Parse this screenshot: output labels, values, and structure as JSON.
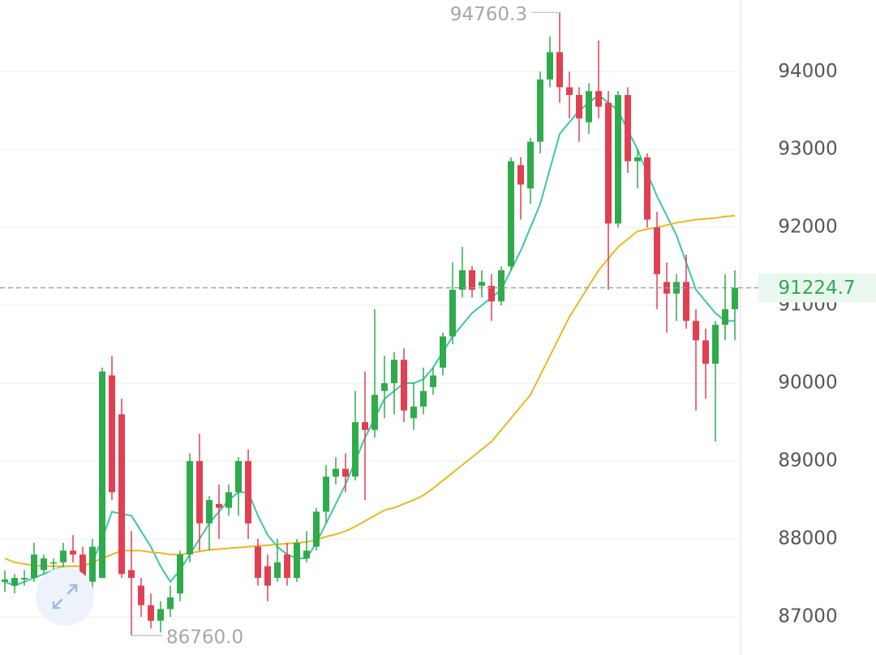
{
  "chart_data": {
    "type": "candlestick",
    "up_color": "#2fab4c",
    "down_color": "#e23f52",
    "ylim": [
      86510,
      94920
    ],
    "yticks": [
      87000,
      88000,
      89000,
      90000,
      91000,
      92000,
      93000,
      94000
    ],
    "grid": true,
    "open": [
      87450,
      87400,
      87480,
      87500,
      87600,
      87700,
      87700,
      87850,
      87800,
      87450,
      87500,
      90100,
      89600,
      87600,
      87400,
      87150,
      86950,
      87100,
      87300,
      87800,
      89000,
      88200,
      88450,
      88400,
      88600,
      89000,
      87900,
      87650,
      87500,
      87800,
      87500,
      87750,
      87900,
      88350,
      88800,
      88900,
      88800,
      89500,
      89400,
      89900,
      90000,
      90300,
      89550,
      89700,
      89950,
      90200,
      90600,
      91200,
      91450,
      91250,
      91250,
      91050,
      91500,
      92800,
      92500,
      93100,
      93900,
      94250,
      93800,
      93700,
      93350,
      93750,
      93600,
      92050,
      93700,
      92850,
      92900,
      92000,
      91300,
      91150,
      91300,
      90800,
      90550,
      90250,
      90750,
      90950
    ],
    "high": [
      87600,
      87550,
      87600,
      87950,
      87800,
      87750,
      87950,
      88050,
      87900,
      88000,
      90200,
      90350,
      89800,
      88100,
      87500,
      87300,
      87200,
      87400,
      87850,
      89100,
      89350,
      88550,
      88700,
      88700,
      89050,
      89150,
      88000,
      87800,
      88000,
      87950,
      88000,
      88100,
      88400,
      88950,
      89050,
      89100,
      89900,
      90150,
      90950,
      90350,
      90400,
      90450,
      90000,
      90200,
      90200,
      90650,
      91550,
      91750,
      91500,
      91450,
      91400,
      91500,
      92900,
      92900,
      93150,
      94000,
      94450,
      94760.3,
      94000,
      93800,
      93850,
      94400,
      93750,
      93750,
      93800,
      93000,
      92950,
      92200,
      91550,
      91400,
      91650,
      90950,
      90700,
      90800,
      91400,
      91450
    ],
    "low": [
      87320,
      87300,
      87400,
      87450,
      87550,
      87600,
      87600,
      87700,
      87400,
      87350,
      87500,
      88500,
      87500,
      86760,
      87000,
      86850,
      86800,
      87000,
      87200,
      87700,
      87850,
      87850,
      88000,
      88300,
      88300,
      88000,
      87400,
      87200,
      87450,
      87400,
      87450,
      87700,
      87850,
      88200,
      88700,
      88600,
      88750,
      88500,
      89300,
      89550,
      89600,
      89500,
      89400,
      89600,
      89850,
      90100,
      90500,
      91100,
      91100,
      91100,
      90800,
      91000,
      91450,
      92100,
      92300,
      92950,
      93800,
      93600,
      93400,
      93100,
      93200,
      93400,
      91200,
      92000,
      92700,
      92500,
      92000,
      90950,
      90650,
      90800,
      90700,
      89650,
      89800,
      89250,
      90550,
      90550
    ],
    "close": [
      87480,
      87500,
      87500,
      87800,
      87750,
      87700,
      87850,
      87800,
      87450,
      87900,
      90150,
      88600,
      87550,
      87500,
      87150,
      86950,
      87100,
      87250,
      87800,
      89000,
      88200,
      88500,
      88400,
      88600,
      89000,
      88200,
      87500,
      87400,
      87700,
      87500,
      87950,
      87850,
      88350,
      88800,
      88900,
      88800,
      89500,
      89400,
      89850,
      90000,
      90300,
      89650,
      89700,
      89900,
      90100,
      90600,
      91200,
      91450,
      91200,
      91300,
      91050,
      91450,
      92850,
      92550,
      93100,
      93900,
      94250,
      93800,
      93700,
      93400,
      93750,
      93550,
      92050,
      93700,
      92850,
      92900,
      92100,
      91400,
      91150,
      91300,
      90800,
      90550,
      90250,
      90750,
      90950,
      91224.7
    ],
    "series": [
      {
        "color": "#3cc6a8",
        "values": [
          87450,
          87400,
          87450,
          87500,
          87550,
          87600,
          87650,
          87650,
          87650,
          87700,
          88000,
          88350,
          88320,
          88300,
          88100,
          87900,
          87650,
          87450,
          87600,
          87800,
          88000,
          88200,
          88350,
          88500,
          88600,
          88600,
          88300,
          88050,
          87900,
          87800,
          87750,
          87750,
          87950,
          88200,
          88450,
          88700,
          89000,
          89300,
          89550,
          89800,
          89900,
          90000,
          90000,
          90050,
          90200,
          90400,
          90600,
          90750,
          90900,
          91000,
          91100,
          91200,
          91450,
          91700,
          92000,
          92300,
          92750,
          93200,
          93350,
          93500,
          93600,
          93700,
          93600,
          93500,
          93250,
          93000,
          92700,
          92400,
          92150,
          91900,
          91550,
          91200,
          91050,
          90900,
          90800,
          90800
        ]
      },
      {
        "color": "#e9b825",
        "values": [
          87750,
          87700,
          87680,
          87660,
          87650,
          87650,
          87650,
          87650,
          87650,
          87700,
          87750,
          87800,
          87850,
          87850,
          87850,
          87830,
          87820,
          87800,
          87800,
          87820,
          87840,
          87860,
          87870,
          87880,
          87890,
          87900,
          87910,
          87920,
          87930,
          87940,
          87950,
          87960,
          87990,
          88030,
          88060,
          88100,
          88160,
          88230,
          88300,
          88370,
          88400,
          88450,
          88500,
          88560,
          88650,
          88750,
          88850,
          88950,
          89050,
          89150,
          89250,
          89400,
          89550,
          89700,
          89850,
          90100,
          90350,
          90600,
          90850,
          91050,
          91250,
          91450,
          91600,
          91750,
          91850,
          91950,
          91980,
          92000,
          92030,
          92060,
          92080,
          92100,
          92110,
          92120,
          92140,
          92150
        ]
      }
    ],
    "annotations": {
      "high": {
        "value": 94760.3,
        "label": "94760.3"
      },
      "low": {
        "value": 86760,
        "label": "86760.0"
      },
      "last": {
        "value": 91224.7,
        "label": "91224.7"
      }
    }
  }
}
